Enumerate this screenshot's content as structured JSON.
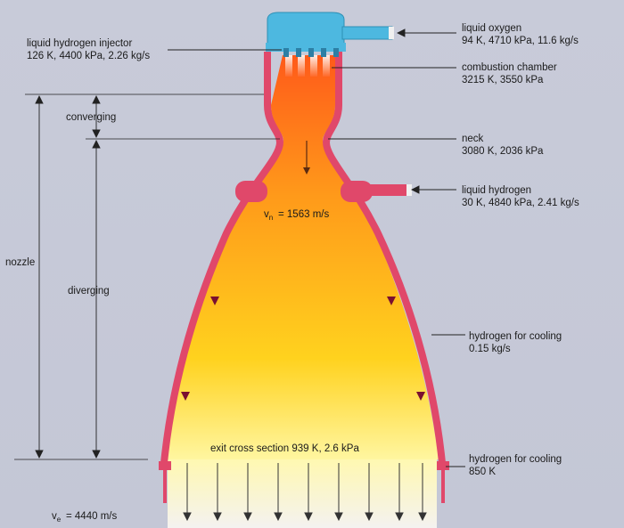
{
  "labels": {
    "injector": {
      "name": "liquid hydrogen injector",
      "values": "126 K, 4400 kPa, 2.26 kg/s"
    },
    "oxygen": {
      "name": "liquid oxygen",
      "values": "94 K, 4710 kPa, 11.6 kg/s"
    },
    "chamber": {
      "name": "combustion chamber",
      "values": "3215 K, 3550 kPa"
    },
    "neck": {
      "name": "neck",
      "values": "3080 K, 2036 kPa"
    },
    "hydrogen": {
      "name": "liquid hydrogen",
      "values": "30 K, 4840 kPa, 2.41 kg/s"
    },
    "cooling1": {
      "name": "hydrogen for cooling",
      "values": "0.15 kg/s"
    },
    "cooling2": {
      "name": "hydrogen for cooling",
      "values": "850 K"
    },
    "exit": "exit cross section 939 K, 2.6 kPa",
    "vn": "= 1563 m/s",
    "ve": "= 4440 m/s",
    "converging": "converging",
    "diverging": "diverging",
    "nozzle": "nozzle"
  },
  "colors": {
    "oxygen": "#4db8e0",
    "wall": "#e04a6a",
    "flame_top": "#ff7a1a",
    "flame_bottom": "#fff27a"
  }
}
